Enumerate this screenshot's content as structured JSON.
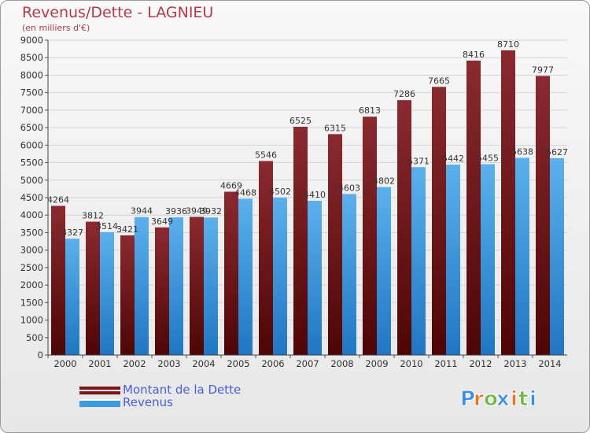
{
  "header": {
    "title": "Revenus/Dette - LAGNIEU",
    "subtitle": "(en milliers d'€)"
  },
  "chart_data": {
    "type": "bar",
    "categories": [
      "2000",
      "2001",
      "2002",
      "2003",
      "2004",
      "2005",
      "2006",
      "2007",
      "2008",
      "2009",
      "2010",
      "2011",
      "2012",
      "2013",
      "2014"
    ],
    "series": [
      {
        "name": "Montant de la Dette",
        "color": "#7a1418",
        "values": [
          4264,
          3812,
          3421,
          3649,
          3949,
          4669,
          5546,
          6525,
          6315,
          6813,
          7286,
          7665,
          8416,
          8710,
          7977
        ]
      },
      {
        "name": "Revenus",
        "color": "#3d9be0",
        "values": [
          3327,
          3514,
          3944,
          3936,
          3932,
          4468,
          4502,
          4410,
          4603,
          4802,
          5371,
          5442,
          5455,
          5638,
          5627
        ]
      }
    ],
    "ylim": [
      0,
      9000
    ],
    "yticks": [
      0,
      500,
      1000,
      1500,
      2000,
      2500,
      3000,
      3500,
      4000,
      4500,
      5000,
      5500,
      6000,
      6500,
      7000,
      7500,
      8000,
      8500,
      9000
    ],
    "grid": true,
    "legend_position": "bottom-left"
  },
  "branding": {
    "logo_text": "Proxiti",
    "letter_colors": [
      "#3a8ee6",
      "#e0742a",
      "#6fb63c",
      "#3a8ee6",
      "#e0742a",
      "#6fb63c",
      "#3a8ee6"
    ]
  }
}
